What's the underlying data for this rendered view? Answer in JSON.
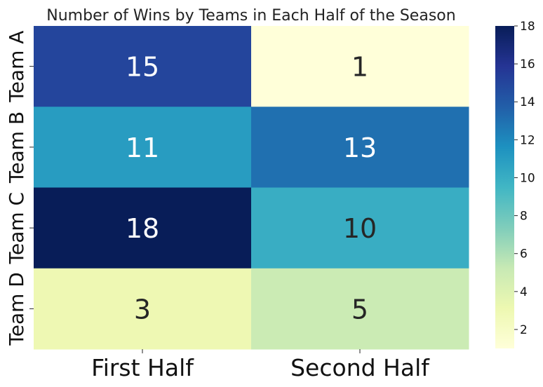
{
  "chart_data": {
    "type": "heatmap",
    "title": "Number of Wins by Teams in Each Half of the Season",
    "xlabel": "",
    "ylabel": "",
    "x_categories": [
      "First Half",
      "Second Half"
    ],
    "y_categories": [
      "Team A",
      "Team B",
      "Team C",
      "Team D"
    ],
    "values": [
      [
        15,
        1
      ],
      [
        11,
        13
      ],
      [
        18,
        10
      ],
      [
        3,
        5
      ]
    ],
    "colorbar": {
      "min": 1,
      "max": 18,
      "ticks": [
        2,
        4,
        6,
        8,
        10,
        12,
        14,
        16,
        18
      ],
      "colormap": "YlGnBu"
    },
    "annotations": true,
    "grid": false
  }
}
